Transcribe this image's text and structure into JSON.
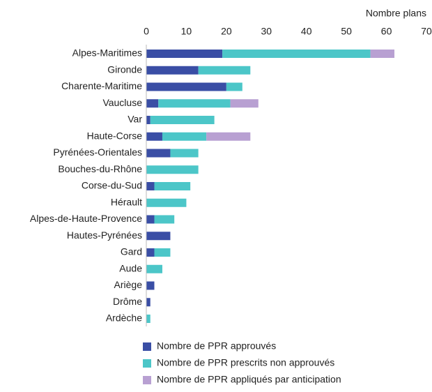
{
  "chart_data": {
    "type": "stacked-barh",
    "x_label": "Nombre plans",
    "categories": [
      "Alpes-Maritimes",
      "Gironde",
      "Charente-Maritime",
      "Vaucluse",
      "Var",
      "Haute-Corse",
      "Pyrénées-Orientales",
      "Bouches-du-Rhône",
      "Corse-du-Sud",
      "Hérault",
      "Alpes-de-Haute-Provence",
      "Hautes-Pyrénées",
      "Gard",
      "Aude",
      "Ariège",
      "Drôme",
      "Ardèche"
    ],
    "series": [
      {
        "name": "Nombre de PPR approuvés",
        "color": "#3a4ea5",
        "values": [
          19,
          13,
          20,
          3,
          1,
          4,
          6,
          0,
          2,
          0,
          2,
          6,
          2,
          0,
          2,
          1,
          0
        ]
      },
      {
        "name": "Nombre de PPR prescrits non approuvés",
        "color": "#4cc6c8",
        "values": [
          37,
          13,
          4,
          18,
          16,
          11,
          7,
          13,
          9,
          10,
          5,
          0,
          4,
          4,
          0,
          0,
          1
        ]
      },
      {
        "name": "Nombre de PPR appliqués par anticipation",
        "color": "#b8a0d2",
        "values": [
          6,
          0,
          0,
          7,
          0,
          11,
          0,
          0,
          0,
          0,
          0,
          0,
          0,
          0,
          0,
          0,
          0
        ]
      }
    ],
    "xlim": [
      0,
      70
    ],
    "xticks": [
      0,
      10,
      20,
      30,
      40,
      50,
      60,
      70
    ],
    "grid": false
  }
}
